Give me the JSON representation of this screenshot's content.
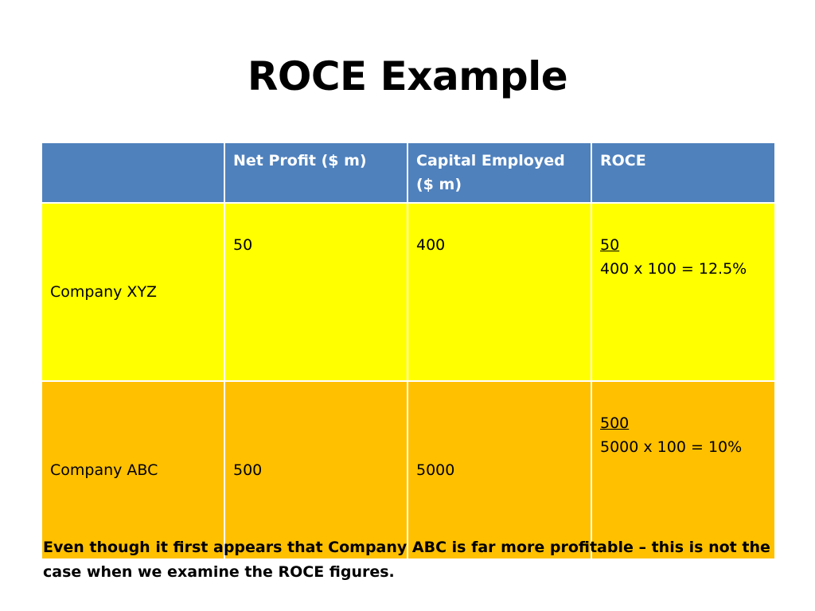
{
  "slide": {
    "title": "ROCE Example",
    "footnote": "Even though it first appears that Company ABC is far more profitable – this is not the case when we examine the ROCE figures."
  },
  "table": {
    "headers": [
      "",
      "Net Profit  ($ m)",
      "Capital Employed ($ m)",
      "ROCE"
    ],
    "rows": [
      {
        "company": "Company XYZ",
        "net_profit": "50",
        "capital_employed": "400",
        "roce_numerator": "50",
        "roce_formula": "400  x 100 = 12.5%"
      },
      {
        "company": "Company ABC",
        "net_profit": "500",
        "capital_employed": "5000",
        "roce_numerator": "500",
        "roce_formula": "5000 x 100 = 10%"
      }
    ]
  },
  "colors": {
    "header_bg": "#4f81bd",
    "row1_bg": "#ffff00",
    "row2_bg": "#ffc000"
  }
}
